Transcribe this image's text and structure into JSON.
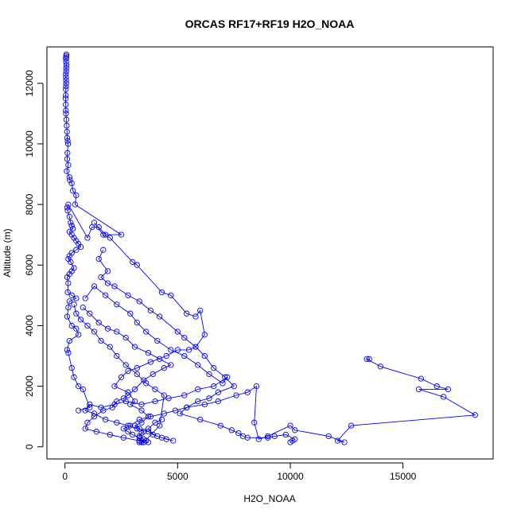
{
  "chart_data": {
    "type": "line",
    "title": "ORCAS RF17+RF19 H2O_NOAA",
    "xlabel": "H2O_NOAA",
    "ylabel": "Altitude (m)",
    "xlim": [
      -800,
      19000
    ],
    "ylim": [
      -400,
      13200
    ],
    "xticks": [
      0,
      5000,
      10000,
      15000
    ],
    "yticks": [
      0,
      2000,
      4000,
      6000,
      8000,
      10000,
      12000
    ],
    "grid": false,
    "legend": "none",
    "series": [
      {
        "color": "#0000ff",
        "marker": "open-circle",
        "line": "solid",
        "points": [
          [
            60,
            12950
          ],
          [
            55,
            12900
          ],
          [
            50,
            12850
          ],
          [
            45,
            12800
          ],
          [
            50,
            12700
          ],
          [
            60,
            12600
          ],
          [
            55,
            12500
          ],
          [
            50,
            12400
          ],
          [
            40,
            12300
          ],
          [
            45,
            12200
          ],
          [
            50,
            12100
          ],
          [
            55,
            12000
          ],
          [
            45,
            11900
          ],
          [
            40,
            11800
          ],
          [
            35,
            11600
          ],
          [
            30,
            11500
          ],
          [
            35,
            11300
          ],
          [
            40,
            11100
          ],
          [
            45,
            11000
          ],
          [
            60,
            10800
          ],
          [
            80,
            10600
          ],
          [
            90,
            10400
          ],
          [
            100,
            10200
          ],
          [
            120,
            10100
          ],
          [
            140,
            10000
          ],
          [
            110,
            9700
          ],
          [
            100,
            9500
          ],
          [
            150,
            9300
          ],
          [
            80,
            9100
          ],
          [
            200,
            8900
          ],
          [
            220,
            8800
          ],
          [
            300,
            8700
          ],
          [
            350,
            8450
          ],
          [
            500,
            8300
          ],
          [
            450,
            8000
          ],
          [
            2500,
            7000
          ],
          [
            1800,
            7000
          ],
          [
            1500,
            7250
          ],
          [
            1200,
            7250
          ],
          [
            1000,
            6900
          ],
          [
            150,
            8000
          ],
          [
            100,
            7900
          ],
          [
            120,
            7800
          ],
          [
            200,
            7600
          ],
          [
            250,
            7400
          ],
          [
            300,
            7300
          ],
          [
            350,
            7200
          ],
          [
            200,
            7100
          ],
          [
            300,
            7000
          ],
          [
            400,
            6900
          ],
          [
            500,
            6800
          ],
          [
            600,
            6700
          ],
          [
            700,
            6600
          ],
          [
            500,
            6500
          ],
          [
            300,
            6400
          ],
          [
            200,
            6300
          ],
          [
            150,
            6200
          ],
          [
            250,
            6100
          ],
          [
            400,
            5900
          ],
          [
            300,
            5800
          ],
          [
            200,
            5700
          ],
          [
            100,
            5600
          ],
          [
            150,
            5400
          ],
          [
            120,
            5100
          ],
          [
            300,
            5000
          ],
          [
            500,
            4900
          ],
          [
            200,
            4800
          ],
          [
            150,
            4600
          ],
          [
            100,
            4300
          ],
          [
            300,
            4000
          ],
          [
            500,
            3900
          ],
          [
            600,
            3700
          ],
          [
            200,
            3500
          ],
          [
            100,
            3200
          ],
          [
            150,
            3100
          ],
          [
            300,
            2600
          ],
          [
            400,
            2300
          ],
          [
            600,
            2000
          ],
          [
            800,
            1900
          ],
          [
            1100,
            1300
          ],
          [
            600,
            1200
          ]
        ]
      },
      {
        "color": "#0000ff",
        "marker": "open-circle",
        "line": "solid",
        "points": [
          [
            1300,
            7400
          ],
          [
            1700,
            7000
          ],
          [
            2000,
            6900
          ],
          [
            3000,
            6100
          ],
          [
            3200,
            6000
          ],
          [
            4300,
            5100
          ],
          [
            4700,
            5000
          ],
          [
            5400,
            4400
          ],
          [
            5800,
            4300
          ],
          [
            6000,
            4500
          ],
          [
            6200,
            3700
          ],
          [
            5800,
            3300
          ],
          [
            5500,
            3200
          ],
          [
            5000,
            3200
          ],
          [
            4500,
            3000
          ],
          [
            3800,
            2800
          ],
          [
            3200,
            2600
          ],
          [
            2800,
            2500
          ],
          [
            2500,
            2300
          ],
          [
            2200,
            2000
          ],
          [
            2800,
            1800
          ],
          [
            3100,
            1500
          ],
          [
            2900,
            1400
          ],
          [
            3400,
            1200
          ],
          [
            3700,
            1000
          ],
          [
            3400,
            800
          ],
          [
            3100,
            700
          ],
          [
            3300,
            600
          ],
          [
            3500,
            500
          ],
          [
            3400,
            450
          ],
          [
            3300,
            350
          ],
          [
            3500,
            250
          ],
          [
            3600,
            200
          ],
          [
            3400,
            150
          ],
          [
            3300,
            150
          ]
        ]
      },
      {
        "color": "#0000ff",
        "marker": "open-circle",
        "line": "solid",
        "points": [
          [
            1700,
            6500
          ],
          [
            1500,
            6200
          ],
          [
            1900,
            5800
          ],
          [
            1600,
            5600
          ],
          [
            1900,
            5400
          ],
          [
            2200,
            5300
          ],
          [
            2800,
            5000
          ],
          [
            3300,
            4800
          ],
          [
            3800,
            4500
          ],
          [
            4200,
            4300
          ],
          [
            5000,
            3800
          ],
          [
            5300,
            3600
          ],
          [
            5800,
            3300
          ],
          [
            6200,
            3000
          ],
          [
            6600,
            2600
          ],
          [
            7100,
            2300
          ],
          [
            7500,
            2000
          ],
          [
            6800,
            1800
          ],
          [
            6400,
            1600
          ],
          [
            5900,
            1500
          ],
          [
            5400,
            1300
          ],
          [
            5100,
            1100
          ],
          [
            6000,
            900
          ],
          [
            6900,
            700
          ],
          [
            7400,
            550
          ],
          [
            7700,
            450
          ],
          [
            7900,
            350
          ],
          [
            8100,
            300
          ],
          [
            9000,
            300
          ],
          [
            9300,
            350
          ],
          [
            9800,
            400
          ],
          [
            10200,
            250
          ],
          [
            10100,
            200
          ],
          [
            10000,
            150
          ]
        ]
      },
      {
        "color": "#0000ff",
        "marker": "open-circle",
        "line": "solid",
        "points": [
          [
            13500,
            2900
          ],
          [
            13400,
            2900
          ],
          [
            14000,
            2650
          ],
          [
            15800,
            2250
          ],
          [
            16500,
            2000
          ],
          [
            17000,
            1900
          ],
          [
            15700,
            1900
          ],
          [
            16800,
            1650
          ],
          [
            18200,
            1050
          ],
          [
            12700,
            700
          ],
          [
            12100,
            200
          ],
          [
            12400,
            150
          ],
          [
            11700,
            350
          ],
          [
            10200,
            550
          ],
          [
            10000,
            700
          ],
          [
            9000,
            350
          ],
          [
            8600,
            250
          ],
          [
            8400,
            800
          ],
          [
            8500,
            2000
          ],
          [
            8100,
            1800
          ],
          [
            7600,
            1700
          ],
          [
            6800,
            1500
          ],
          [
            6200,
            1400
          ],
          [
            5400,
            1300
          ],
          [
            4900,
            1200
          ],
          [
            4400,
            1100
          ],
          [
            3800,
            1000
          ],
          [
            3300,
            900
          ],
          [
            2900,
            700
          ],
          [
            2600,
            600
          ],
          [
            2800,
            500
          ],
          [
            3000,
            400
          ],
          [
            3300,
            300
          ],
          [
            3400,
            200
          ],
          [
            3700,
            150
          ]
        ]
      },
      {
        "color": "#0000ff",
        "marker": "open-circle",
        "line": "solid",
        "points": [
          [
            900,
            4900
          ],
          [
            1300,
            5300
          ],
          [
            1800,
            5000
          ],
          [
            2300,
            4700
          ],
          [
            2900,
            4400
          ],
          [
            3200,
            4100
          ],
          [
            3600,
            3800
          ],
          [
            4100,
            3500
          ],
          [
            4700,
            3200
          ],
          [
            5300,
            3000
          ],
          [
            5900,
            2700
          ],
          [
            6400,
            2400
          ],
          [
            7000,
            2100
          ],
          [
            7200,
            2300
          ],
          [
            6600,
            2000
          ],
          [
            5900,
            1900
          ],
          [
            5300,
            1700
          ],
          [
            4600,
            1600
          ],
          [
            4000,
            1500
          ],
          [
            3400,
            1400
          ],
          [
            2700,
            1500
          ],
          [
            2200,
            1400
          ],
          [
            1600,
            1300
          ],
          [
            1100,
            1400
          ],
          [
            900,
            1200
          ],
          [
            1300,
            1100
          ],
          [
            1800,
            900
          ],
          [
            2300,
            800
          ],
          [
            2800,
            700
          ],
          [
            3200,
            600
          ],
          [
            3700,
            500
          ],
          [
            4100,
            350
          ],
          [
            4500,
            250
          ],
          [
            4800,
            200
          ],
          [
            4300,
            300
          ],
          [
            3900,
            400
          ],
          [
            3700,
            600
          ],
          [
            4000,
            800
          ],
          [
            4300,
            900
          ]
        ]
      },
      {
        "color": "#0000ff",
        "marker": "open-circle",
        "line": "solid",
        "points": [
          [
            800,
            4600
          ],
          [
            1100,
            4400
          ],
          [
            1500,
            4100
          ],
          [
            1900,
            3900
          ],
          [
            2300,
            3800
          ],
          [
            2700,
            3600
          ],
          [
            3100,
            3300
          ],
          [
            3700,
            3100
          ],
          [
            4200,
            2900
          ],
          [
            4700,
            2700
          ],
          [
            4400,
            2600
          ],
          [
            3900,
            2400
          ],
          [
            3500,
            2200
          ],
          [
            3100,
            1900
          ],
          [
            2800,
            1700
          ],
          [
            2600,
            1600
          ],
          [
            2300,
            1500
          ],
          [
            2100,
            1300
          ],
          [
            1700,
            1200
          ],
          [
            1300,
            1000
          ],
          [
            1000,
            800
          ],
          [
            900,
            600
          ],
          [
            1400,
            500
          ],
          [
            2000,
            400
          ],
          [
            2600,
            300
          ],
          [
            3300,
            200
          ],
          [
            3500,
            150
          ],
          [
            4200,
            700
          ],
          [
            4400,
            1700
          ],
          [
            4000,
            1900
          ],
          [
            3600,
            2100
          ],
          [
            3200,
            2400
          ],
          [
            2700,
            2700
          ],
          [
            2300,
            3000
          ],
          [
            2000,
            3300
          ],
          [
            1600,
            3500
          ],
          [
            1300,
            3800
          ],
          [
            1000,
            4000
          ],
          [
            700,
            4200
          ],
          [
            500,
            4400
          ],
          [
            400,
            4700
          ]
        ]
      }
    ]
  }
}
